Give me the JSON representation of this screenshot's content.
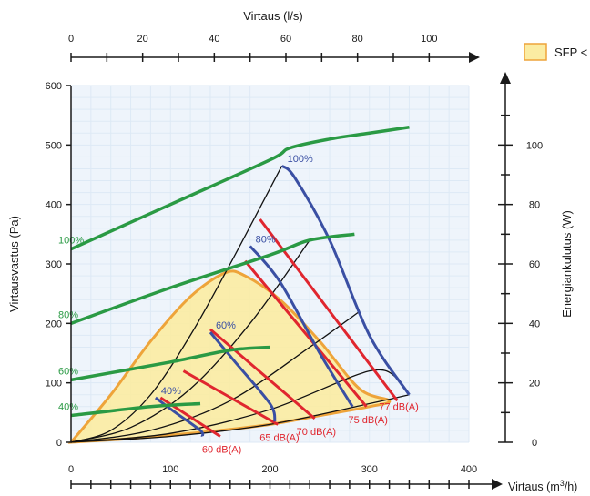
{
  "colors": {
    "fan": "#2a9a44",
    "blade": "#3a4fa3",
    "sound": "#e0262f",
    "sfp": "#eea43a",
    "sfp_fill": "#fbeca2",
    "axis": "#1a1a1a",
    "grid": "#dde9f5",
    "curve_bg": "#eef4fb"
  },
  "chart_data": {
    "type": "line",
    "title": "",
    "top_axis": {
      "label": "Virtaus (l/s)",
      "range": [
        0,
        111.1
      ],
      "ticks": [
        "0",
        "20",
        "40",
        "60",
        "80",
        "100"
      ]
    },
    "x_axis": {
      "label_prefix": "Virtaus (m",
      "label_sup": "3",
      "label_suffix": "/h)",
      "range": [
        0,
        400
      ],
      "ticks": [
        "0",
        "100",
        "200",
        "300",
        "400"
      ]
    },
    "y_axis": {
      "label": "Virtausvastus (Pa)",
      "range": [
        0,
        600
      ],
      "ticks": [
        "0",
        "100",
        "200",
        "300",
        "400",
        "500",
        "600"
      ]
    },
    "y2_axis": {
      "label": "Energiankulutus (W)",
      "range": [
        0,
        120
      ],
      "ticks": [
        "0",
        "20",
        "40",
        "60",
        "80",
        "100"
      ]
    },
    "legend": {
      "label": "SFP <",
      "position": "top-right"
    },
    "fan_power_curves": [
      {
        "name": "100%",
        "x": [
          0,
          100,
          200,
          220,
          260,
          300,
          340
        ],
        "y": [
          325,
          400,
          475,
          495,
          510,
          520,
          530
        ]
      },
      {
        "name": "80%",
        "x": [
          0,
          100,
          200,
          240,
          285
        ],
        "y": [
          200,
          260,
          315,
          340,
          350
        ]
      },
      {
        "name": "60%",
        "x": [
          0,
          100,
          160,
          200
        ],
        "y": [
          105,
          135,
          155,
          160
        ]
      },
      {
        "name": "40%",
        "x": [
          0,
          80,
          130
        ],
        "y": [
          45,
          60,
          65
        ]
      }
    ],
    "blade_curves": [
      {
        "name": "100%",
        "x": [
          212,
          225,
          260,
          300,
          340
        ],
        "y": [
          465,
          445,
          340,
          180,
          80
        ]
      },
      {
        "name": "80%",
        "x": [
          180,
          210,
          250,
          283
        ],
        "y": [
          330,
          270,
          150,
          60
        ]
      },
      {
        "name": "60%",
        "x": [
          140,
          165,
          200,
          205
        ],
        "y": [
          185,
          135,
          65,
          35
        ]
      },
      {
        "name": "40%",
        "x": [
          85,
          105,
          130,
          132
        ],
        "y": [
          75,
          50,
          20,
          10
        ]
      }
    ],
    "system_curves": [
      {
        "x": [
          0,
          40,
          80,
          120,
          160,
          212
        ],
        "y": [
          0,
          20,
          80,
          180,
          300,
          465
        ]
      },
      {
        "x": [
          0,
          60,
          120,
          180,
          240
        ],
        "y": [
          0,
          25,
          90,
          200,
          340
        ]
      },
      {
        "x": [
          0,
          80,
          160,
          240,
          290
        ],
        "y": [
          0,
          20,
          70,
          160,
          220
        ]
      },
      {
        "x": [
          0,
          100,
          200,
          300,
          330
        ],
        "y": [
          0,
          15,
          55,
          120,
          105
        ]
      },
      {
        "x": [
          0,
          100,
          200,
          300,
          340
        ],
        "y": [
          0,
          10,
          30,
          65,
          80
        ]
      }
    ],
    "sound_lines": [
      {
        "name": "60 dB(A)",
        "x": [
          90,
          150
        ],
        "y": [
          75,
          10
        ]
      },
      {
        "name": "65 dB(A)",
        "x": [
          113,
          208
        ],
        "y": [
          120,
          30
        ]
      },
      {
        "name": "70 dB(A)",
        "x": [
          140,
          245
        ],
        "y": [
          190,
          40
        ]
      },
      {
        "name": "75 dB(A)",
        "x": [
          175,
          297
        ],
        "y": [
          305,
          60
        ]
      },
      {
        "name": "77 dB(A)",
        "x": [
          190,
          328
        ],
        "y": [
          375,
          70
        ]
      }
    ],
    "sfp_region": {
      "x": [
        0,
        40,
        80,
        120,
        155,
        175,
        210,
        250,
        290,
        320,
        300,
        250,
        200,
        150,
        100,
        50,
        0
      ],
      "y": [
        0,
        80,
        170,
        245,
        285,
        280,
        240,
        170,
        90,
        70,
        60,
        45,
        30,
        20,
        12,
        5,
        0
      ]
    }
  }
}
